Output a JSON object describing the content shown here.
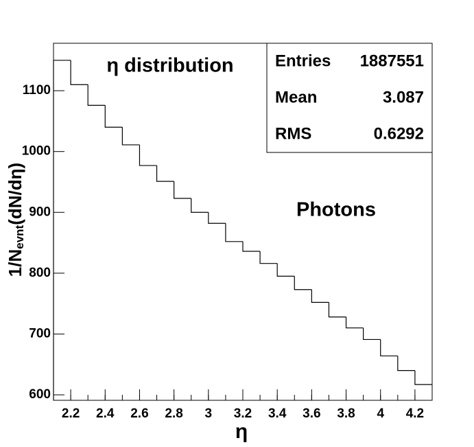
{
  "chart_data": {
    "type": "histogram",
    "title": "η distribution",
    "annotation": "Photons",
    "x_label": "η",
    "y_label": [
      "1/N",
      "evnt",
      "(dN/dη)"
    ],
    "bins": [
      2.1,
      2.2,
      2.3,
      2.4,
      2.5,
      2.6,
      2.7,
      2.8,
      2.9,
      3.0,
      3.1,
      3.2,
      3.3,
      3.4,
      3.5,
      3.6,
      3.7,
      3.8,
      3.9,
      4.0,
      4.1,
      4.2,
      4.3
    ],
    "values": [
      1150,
      1110,
      1076,
      1040,
      1011,
      977,
      951,
      923,
      900,
      882,
      852,
      836,
      816,
      795,
      773,
      752,
      728,
      710,
      691,
      664,
      640,
      617
    ],
    "color": "#000000",
    "xlim": [
      2.1,
      4.3
    ],
    "xticks": [
      2.2,
      2.4,
      2.6,
      2.8,
      3,
      3.2,
      3.4,
      3.6,
      3.8,
      4,
      4.2
    ],
    "ylim": [
      591,
      1178
    ],
    "yticks": [
      600,
      700,
      800,
      900,
      1000,
      1100
    ],
    "stats": [
      {
        "label": "Entries",
        "value": 1887551
      },
      {
        "label": "Mean",
        "value": 3.087
      },
      {
        "label": "RMS",
        "value": 0.6292
      }
    ]
  }
}
